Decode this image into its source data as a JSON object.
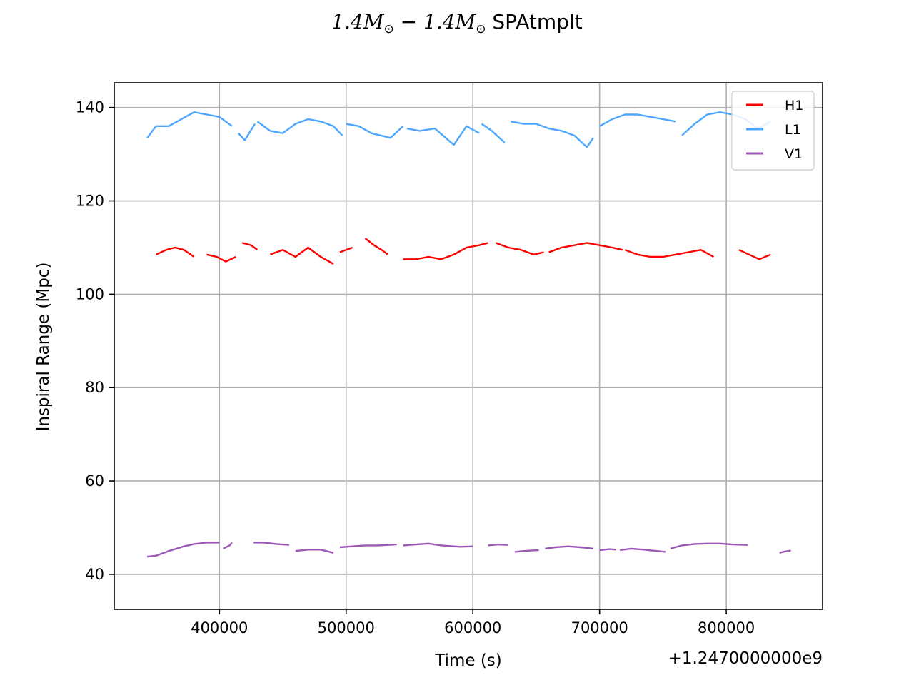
{
  "chart_data": {
    "type": "line",
    "title": {
      "m1": "1.4",
      "m2": "1.4",
      "symbol": "M",
      "sub": "⊙",
      "minus": "−",
      "suffix": "SPAtmplt"
    },
    "xlabel": "Time (s)",
    "ylabel": "Inspiral Range (Mpc)",
    "x_offset_label": "+1.2470000000e9",
    "xlim": [
      317000,
      876000
    ],
    "ylim": [
      32.5,
      145.3
    ],
    "xticks": [
      400000,
      500000,
      600000,
      700000,
      800000
    ],
    "yticks": [
      40,
      60,
      80,
      100,
      120,
      140
    ],
    "grid": true,
    "legend_position": "top-right",
    "series": [
      {
        "name": "V1",
        "color": "#9b59b6",
        "segments": [
          {
            "x": [
              343000,
              350000,
              360000,
              372000,
              380000,
              390000,
              400000
            ],
            "y": [
              43.8,
              44.0,
              45.0,
              46.0,
              46.5,
              46.8,
              46.8
            ]
          },
          {
            "x": [
              403000,
              408000,
              410000
            ],
            "y": [
              45.5,
              46.2,
              46.8
            ]
          },
          {
            "x": [
              427000,
              435000,
              445000,
              455000
            ],
            "y": [
              46.8,
              46.8,
              46.5,
              46.3
            ]
          },
          {
            "x": [
              460000,
              470000,
              480000,
              490000
            ],
            "y": [
              45.0,
              45.3,
              45.3,
              44.6
            ]
          },
          {
            "x": [
              495000,
              505000,
              515000,
              525000,
              540000
            ],
            "y": [
              45.8,
              46.0,
              46.2,
              46.2,
              46.4
            ]
          },
          {
            "x": [
              545000,
              555000,
              565000,
              575000,
              590000,
              600000
            ],
            "y": [
              46.2,
              46.4,
              46.6,
              46.2,
              45.9,
              46.0
            ]
          },
          {
            "x": [
              612000,
              620000,
              628000
            ],
            "y": [
              46.2,
              46.4,
              46.3
            ]
          },
          {
            "x": [
              633000,
              640000,
              652000
            ],
            "y": [
              44.8,
              45.0,
              45.2
            ]
          },
          {
            "x": [
              657000,
              665000,
              675000,
              685000,
              695000
            ],
            "y": [
              45.5,
              45.8,
              46.0,
              45.8,
              45.5
            ]
          },
          {
            "x": [
              700000,
              708000,
              713000
            ],
            "y": [
              45.2,
              45.4,
              45.3
            ]
          },
          {
            "x": [
              716000,
              725000,
              735000,
              745000,
              752000
            ],
            "y": [
              45.2,
              45.5,
              45.3,
              45.0,
              44.8
            ]
          },
          {
            "x": [
              756000,
              765000,
              775000,
              785000,
              795000,
              805000,
              817000
            ],
            "y": [
              45.5,
              46.2,
              46.5,
              46.6,
              46.6,
              46.4,
              46.3
            ]
          },
          {
            "x": [
              842000,
              846000,
              851000
            ],
            "y": [
              44.6,
              44.9,
              45.1
            ]
          }
        ]
      },
      {
        "name": "L1",
        "color": "#4da6ff",
        "segments": [
          {
            "x": [
              343000,
              350000,
              360000,
              370000,
              380000,
              390000,
              400000,
              410000
            ],
            "y": [
              133.5,
              136.0,
              136.0,
              137.5,
              139.0,
              138.5,
              138.0,
              136.0
            ]
          },
          {
            "x": [
              415000,
              420000,
              428000
            ],
            "y": [
              134.5,
              133.0,
              136.5
            ]
          },
          {
            "x": [
              430000,
              440000,
              450000,
              460000,
              470000,
              480000,
              490000,
              497000
            ],
            "y": [
              137.0,
              135.0,
              134.5,
              136.5,
              137.5,
              137.0,
              136.0,
              134.0
            ]
          },
          {
            "x": [
              500000,
              510000,
              520000,
              535000,
              545000
            ],
            "y": [
              136.5,
              136.0,
              134.5,
              133.5,
              136.0
            ]
          },
          {
            "x": [
              548000,
              558000,
              570000,
              585000,
              595000,
              605000
            ],
            "y": [
              135.5,
              135.0,
              135.5,
              132.0,
              136.0,
              134.5
            ]
          },
          {
            "x": [
              607000,
              615000,
              625000
            ],
            "y": [
              136.5,
              135.0,
              132.5
            ]
          },
          {
            "x": [
              630000,
              640000,
              650000,
              660000,
              670000,
              680000,
              690000,
              695000
            ],
            "y": [
              137.0,
              136.5,
              136.5,
              135.5,
              135.0,
              134.0,
              131.5,
              133.5
            ]
          },
          {
            "x": [
              700000,
              710000,
              720000,
              730000,
              740000,
              750000,
              760000
            ],
            "y": [
              136.0,
              137.5,
              138.5,
              138.5,
              138.0,
              137.5,
              137.0
            ]
          },
          {
            "x": [
              765000,
              775000,
              785000,
              795000,
              805000,
              815000,
              825000,
              835000
            ],
            "y": [
              134.0,
              136.5,
              138.5,
              139.0,
              138.5,
              137.5,
              135.5,
              137.0
            ]
          }
        ]
      },
      {
        "name": "H1",
        "color": "#ff0000",
        "segments": [
          {
            "x": [
              350000,
              358000,
              365000,
              372000,
              380000
            ],
            "y": [
              108.5,
              109.5,
              110.0,
              109.5,
              108.0
            ]
          },
          {
            "x": [
              390000,
              398000,
              405000,
              413000
            ],
            "y": [
              108.5,
              108.0,
              107.0,
              108.0
            ]
          },
          {
            "x": [
              418000,
              425000,
              430000
            ],
            "y": [
              111.0,
              110.5,
              109.5
            ]
          },
          {
            "x": [
              440000,
              450000,
              460000,
              470000,
              480000,
              490000
            ],
            "y": [
              108.5,
              109.5,
              108.0,
              110.0,
              108.0,
              106.5
            ]
          },
          {
            "x": [
              495000,
              505000
            ],
            "y": [
              109.0,
              110.0
            ]
          },
          {
            "x": [
              515000,
              522000,
              528000,
              533000
            ],
            "y": [
              112.0,
              110.5,
              109.5,
              108.5
            ]
          },
          {
            "x": [
              545000,
              555000,
              565000,
              575000,
              585000,
              595000,
              605000,
              612000
            ],
            "y": [
              107.5,
              107.5,
              108.0,
              107.5,
              108.5,
              110.0,
              110.5,
              111.0
            ]
          },
          {
            "x": [
              618000,
              628000,
              638000,
              648000,
              656000
            ],
            "y": [
              111.0,
              110.0,
              109.5,
              108.5,
              109.0
            ]
          },
          {
            "x": [
              660000,
              670000,
              680000,
              690000,
              700000,
              710000,
              718000
            ],
            "y": [
              109.0,
              110.0,
              110.5,
              111.0,
              110.5,
              110.0,
              109.5
            ]
          },
          {
            "x": [
              720000,
              730000,
              740000,
              750000,
              760000,
              770000,
              780000,
              790000
            ],
            "y": [
              109.5,
              108.5,
              108.0,
              108.0,
              108.5,
              109.0,
              109.5,
              108.0
            ]
          },
          {
            "x": [
              810000,
              818000,
              826000,
              835000
            ],
            "y": [
              109.5,
              108.5,
              107.5,
              108.5
            ]
          }
        ]
      }
    ]
  }
}
